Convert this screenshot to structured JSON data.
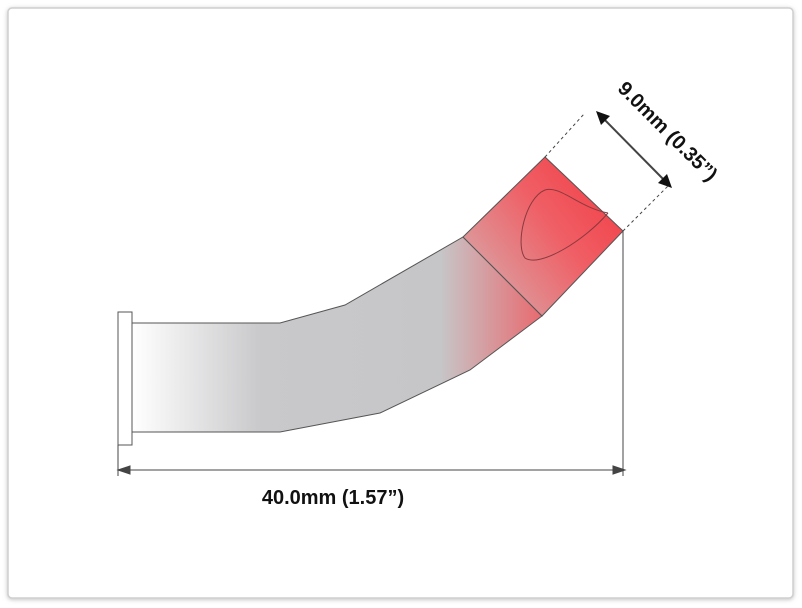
{
  "dimensions": {
    "length": "40.0mm (1.57”)",
    "width": "9.0mm (0.35”)"
  }
}
